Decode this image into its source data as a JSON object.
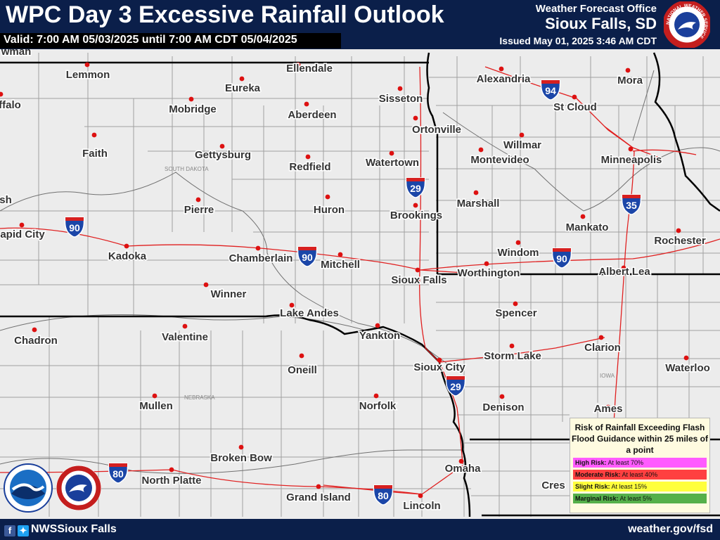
{
  "header": {
    "title": "WPC Day 3 Excessive Rainfall Outlook",
    "valid": "Valid: 7:00 AM 05/03/2025 until 7:00 AM CDT 05/04/2025",
    "office": "Weather Forecast Office",
    "place": "Sioux Falls, SD",
    "issued": "Issued May 01, 2025 3:46 AM CDT",
    "logo_text": "NATIONAL WEATHER SERVICE"
  },
  "footer": {
    "social_handle": "NWSSioux Falls",
    "website": "weather.gov/fsd"
  },
  "colors": {
    "header_bg": "#0b1f4a",
    "map_bg": "#ececec",
    "county_line": "#a0a0a0",
    "state_line": "#000000",
    "road": "#e02020",
    "river": "#707070",
    "city_dot": "#dd1111"
  },
  "map_labels": {
    "south_dakota": "SOUTH DAKOTA",
    "nebraska": "NEBRASKA",
    "iowa": "IOWA"
  },
  "cities": [
    {
      "name": "Lemmon"
    },
    {
      "name": "Ellendale"
    },
    {
      "name": "Eureka"
    },
    {
      "name": "Mobridge"
    },
    {
      "name": "Sisseton"
    },
    {
      "name": "Aberdeen"
    },
    {
      "name": "Faith"
    },
    {
      "name": "Gettysburg"
    },
    {
      "name": "Redfield"
    },
    {
      "name": "Watertown"
    },
    {
      "name": "Ortonville"
    },
    {
      "name": "Pierre"
    },
    {
      "name": "Huron"
    },
    {
      "name": "Brookings"
    },
    {
      "name": "apid City"
    },
    {
      "name": "Kadoka"
    },
    {
      "name": "Chamberlain"
    },
    {
      "name": "Mitchell"
    },
    {
      "name": "Sioux Falls"
    },
    {
      "name": "Winner"
    },
    {
      "name": "Lake Andes"
    },
    {
      "name": "Yankton"
    },
    {
      "name": "Chadron"
    },
    {
      "name": "Valentine"
    },
    {
      "name": "Oneill"
    },
    {
      "name": "Sioux City"
    },
    {
      "name": "Mullen"
    },
    {
      "name": "Norfolk"
    },
    {
      "name": "Broken Bow"
    },
    {
      "name": "North Platte"
    },
    {
      "name": "Grand Island"
    },
    {
      "name": "Lincoln"
    },
    {
      "name": "Omaha"
    },
    {
      "name": "Alexandria"
    },
    {
      "name": "Mora"
    },
    {
      "name": "St Cloud"
    },
    {
      "name": "Willmar"
    },
    {
      "name": "Montevideo"
    },
    {
      "name": "Minneapolis"
    },
    {
      "name": "Marshall"
    },
    {
      "name": "Mankato"
    },
    {
      "name": "Rochester"
    },
    {
      "name": "Windom"
    },
    {
      "name": "Worthington"
    },
    {
      "name": "Albert Lea"
    },
    {
      "name": "Spencer"
    },
    {
      "name": "Storm Lake"
    },
    {
      "name": "Clarion"
    },
    {
      "name": "Waterloo"
    },
    {
      "name": "Denison"
    },
    {
      "name": "Ames"
    },
    {
      "name": "Cres"
    },
    {
      "name": "wman"
    },
    {
      "name": "ffalo"
    },
    {
      "name": "sh"
    }
  ],
  "shields": [
    {
      "route": "94"
    },
    {
      "route": "29"
    },
    {
      "route": "35"
    },
    {
      "route": "90"
    },
    {
      "route": "90"
    },
    {
      "route": "90"
    },
    {
      "route": "29"
    },
    {
      "route": "80"
    },
    {
      "route": "80"
    }
  ],
  "legend": {
    "title": "Risk of Rainfall Exceeding Flash Flood Guidance within 25 miles of a point",
    "items": [
      {
        "label": "High Risk:",
        "desc": "At least 70%",
        "color": "#ff5cff"
      },
      {
        "label": "Moderate Risk:",
        "desc": "At least 40%",
        "color": "#ff4040"
      },
      {
        "label": "Slight Risk:",
        "desc": "At least 15%",
        "color": "#ffff3c"
      },
      {
        "label": "Marginal Risk:",
        "desc": "At least 5%",
        "color": "#55b04a"
      }
    ]
  }
}
